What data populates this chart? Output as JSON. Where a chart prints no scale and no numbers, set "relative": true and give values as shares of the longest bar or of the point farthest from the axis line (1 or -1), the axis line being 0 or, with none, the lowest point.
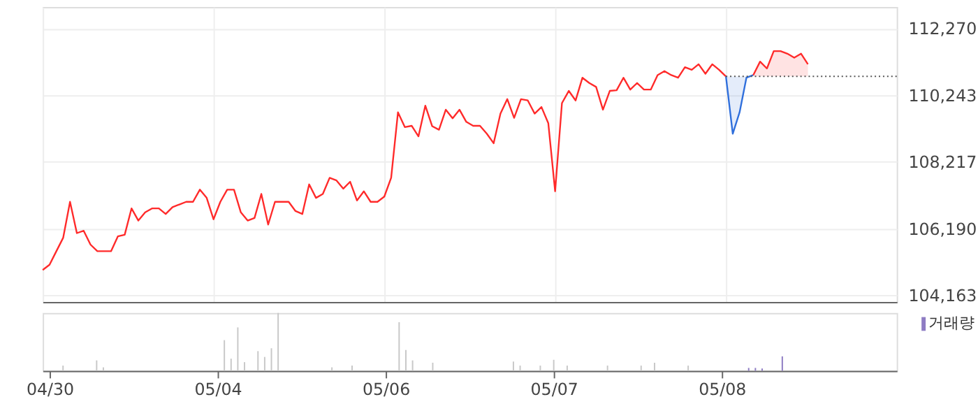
{
  "chart_data": [
    {
      "type": "line",
      "ylim": [
        103960,
        112920
      ],
      "yticks": [
        {
          "value": 104163,
          "label": "104,163"
        },
        {
          "value": 106190,
          "label": "106,190"
        },
        {
          "value": 108217,
          "label": "108,217"
        },
        {
          "value": 110243,
          "label": "110,243"
        },
        {
          "value": 112270,
          "label": "112,270"
        }
      ],
      "tick_labels": "y",
      "grid": true,
      "categories": [
        null,
        null,
        null,
        null,
        null,
        null,
        null,
        null,
        null,
        null,
        null,
        null,
        null,
        null,
        null,
        null,
        null,
        null,
        null,
        null,
        null,
        null,
        null,
        null,
        null,
        null,
        null,
        null,
        null,
        null,
        null,
        null,
        null,
        null,
        null,
        null,
        null,
        null,
        null,
        null,
        null,
        null,
        null,
        null,
        null,
        null,
        null,
        null,
        null,
        null,
        null,
        null,
        null,
        null,
        null,
        null,
        null,
        null,
        null,
        null,
        null,
        null,
        null,
        null,
        null,
        null,
        null,
        null,
        null,
        null,
        null,
        null,
        null,
        null,
        null,
        null,
        null,
        null,
        null,
        null,
        null,
        null,
        null,
        null,
        null,
        null,
        null,
        null,
        null,
        null,
        null,
        null,
        null,
        null,
        null,
        null,
        null,
        null,
        null,
        null,
        null,
        null,
        null,
        null,
        null,
        null,
        null,
        null,
        null,
        null,
        null,
        null,
        null,
        null,
        null,
        null,
        null,
        null,
        null,
        null,
        null,
        null,
        null,
        null,
        null,
        null
      ],
      "ref_lines": [
        {
          "axis": "y",
          "value": 110810,
          "color": "#555555",
          "line_style": "dotted"
        }
      ],
      "series": [
        {
          "type": "line",
          "color": "#ff2a2a",
          "values": [
            104930,
            105090,
            105500,
            105910,
            107000,
            106050,
            106120,
            105700,
            105500,
            105500,
            105500,
            105950,
            106000,
            106800,
            106430,
            106680,
            106800,
            106800,
            106630,
            106840,
            106920,
            107000,
            107000,
            107370,
            107120,
            106470,
            107000,
            107370,
            107370,
            106680,
            106430,
            106510,
            107240,
            106310,
            107000,
            107000,
            107000,
            106720,
            106630,
            107530,
            107120,
            107240,
            107730,
            107650,
            107400,
            107610,
            107040,
            107320,
            107000,
            107000,
            107160,
            107730,
            109720,
            109270,
            109310,
            108990,
            109920,
            109300,
            109190,
            109800,
            109540,
            109800,
            109430,
            109310,
            109310,
            109070,
            108780,
            109680,
            110120,
            109550,
            110120,
            110080,
            109680,
            109880,
            109390,
            107320,
            110000,
            110370,
            110080,
            110770,
            110610,
            110490,
            109800,
            110370,
            110390,
            110770,
            110410,
            110610,
            110410,
            110410,
            110850,
            110970,
            110850,
            110770,
            111090,
            111010,
            111180,
            110890,
            111180,
            111010,
            110810,
            null,
            null,
            null,
            null,
            null,
            null,
            null,
            null,
            null,
            null,
            null,
            null,
            null,
            null,
            null,
            null,
            null,
            null,
            null,
            null,
            null,
            null,
            null,
            null,
            null
          ]
        },
        {
          "type": "line",
          "color": "#2f6fdc",
          "values": [
            null,
            null,
            null,
            null,
            null,
            null,
            null,
            null,
            null,
            null,
            null,
            null,
            null,
            null,
            null,
            null,
            null,
            null,
            null,
            null,
            null,
            null,
            null,
            null,
            null,
            null,
            null,
            null,
            null,
            null,
            null,
            null,
            null,
            null,
            null,
            null,
            null,
            null,
            null,
            null,
            null,
            null,
            null,
            null,
            null,
            null,
            null,
            null,
            null,
            null,
            null,
            null,
            null,
            null,
            null,
            null,
            null,
            null,
            null,
            null,
            null,
            null,
            null,
            null,
            null,
            null,
            null,
            null,
            null,
            null,
            null,
            null,
            null,
            null,
            null,
            null,
            null,
            null,
            null,
            null,
            null,
            null,
            null,
            null,
            null,
            null,
            null,
            null,
            null,
            null,
            null,
            null,
            null,
            null,
            null,
            null,
            null,
            null,
            null,
            null,
            110810,
            109070,
            109720,
            110770,
            110850,
            null,
            null,
            null,
            null,
            null,
            null,
            null,
            null,
            null,
            null,
            null,
            null,
            null,
            null,
            null,
            null,
            null,
            null,
            null,
            null,
            null
          ],
          "lower": [
            null,
            null,
            null,
            null,
            null,
            null,
            null,
            null,
            null,
            null,
            null,
            null,
            null,
            null,
            null,
            null,
            null,
            null,
            null,
            null,
            null,
            null,
            null,
            null,
            null,
            null,
            null,
            null,
            null,
            null,
            null,
            null,
            null,
            null,
            null,
            null,
            null,
            null,
            null,
            null,
            null,
            null,
            null,
            null,
            null,
            null,
            null,
            null,
            null,
            null,
            null,
            null,
            null,
            null,
            null,
            null,
            null,
            null,
            null,
            null,
            null,
            null,
            null,
            null,
            null,
            null,
            null,
            null,
            null,
            null,
            null,
            null,
            null,
            null,
            null,
            null,
            null,
            null,
            null,
            null,
            null,
            null,
            null,
            null,
            null,
            null,
            null,
            null,
            null,
            null,
            null,
            null,
            null,
            null,
            null,
            null,
            null,
            null,
            null,
            null,
            110810,
            109070,
            109720,
            110770,
            110810,
            null,
            null,
            null,
            null,
            null,
            null,
            null,
            null,
            null,
            null,
            null,
            null,
            null,
            null,
            null,
            null,
            null,
            null,
            null,
            null,
            null
          ],
          "upper": [
            null,
            null,
            null,
            null,
            null,
            null,
            null,
            null,
            null,
            null,
            null,
            null,
            null,
            null,
            null,
            null,
            null,
            null,
            null,
            null,
            null,
            null,
            null,
            null,
            null,
            null,
            null,
            null,
            null,
            null,
            null,
            null,
            null,
            null,
            null,
            null,
            null,
            null,
            null,
            null,
            null,
            null,
            null,
            null,
            null,
            null,
            null,
            null,
            null,
            null,
            null,
            null,
            null,
            null,
            null,
            null,
            null,
            null,
            null,
            null,
            null,
            null,
            null,
            null,
            null,
            null,
            null,
            null,
            null,
            null,
            null,
            null,
            null,
            null,
            null,
            null,
            null,
            null,
            null,
            null,
            null,
            null,
            null,
            null,
            null,
            null,
            null,
            null,
            null,
            null,
            null,
            null,
            null,
            null,
            null,
            null,
            null,
            null,
            null,
            null,
            110810,
            110810,
            110810,
            110810,
            110810,
            null,
            null,
            null,
            null,
            null,
            null,
            null,
            null,
            null,
            null,
            null,
            null,
            null,
            null,
            null,
            null,
            null,
            null,
            null,
            null,
            null
          ]
        },
        {
          "type": "line",
          "color": "#ff2a2a",
          "values": [
            null,
            null,
            null,
            null,
            null,
            null,
            null,
            null,
            null,
            null,
            null,
            null,
            null,
            null,
            null,
            null,
            null,
            null,
            null,
            null,
            null,
            null,
            null,
            null,
            null,
            null,
            null,
            null,
            null,
            null,
            null,
            null,
            null,
            null,
            null,
            null,
            null,
            null,
            null,
            null,
            null,
            null,
            null,
            null,
            null,
            null,
            null,
            null,
            null,
            null,
            null,
            null,
            null,
            null,
            null,
            null,
            null,
            null,
            null,
            null,
            null,
            null,
            null,
            null,
            null,
            null,
            null,
            null,
            null,
            null,
            null,
            null,
            null,
            null,
            null,
            null,
            null,
            null,
            null,
            null,
            null,
            null,
            null,
            null,
            null,
            null,
            null,
            null,
            null,
            null,
            null,
            null,
            null,
            null,
            null,
            null,
            null,
            null,
            null,
            null,
            null,
            null,
            null,
            null,
            110850,
            111260,
            111050,
            111580,
            111580,
            111500,
            111380,
            111500,
            111180,
            null,
            null,
            null,
            null,
            null,
            null,
            null,
            null,
            null,
            null,
            null,
            null,
            null
          ],
          "lower": [
            null,
            null,
            null,
            null,
            null,
            null,
            null,
            null,
            null,
            null,
            null,
            null,
            null,
            null,
            null,
            null,
            null,
            null,
            null,
            null,
            null,
            null,
            null,
            null,
            null,
            null,
            null,
            null,
            null,
            null,
            null,
            null,
            null,
            null,
            null,
            null,
            null,
            null,
            null,
            null,
            null,
            null,
            null,
            null,
            null,
            null,
            null,
            null,
            null,
            null,
            null,
            null,
            null,
            null,
            null,
            null,
            null,
            null,
            null,
            null,
            null,
            null,
            null,
            null,
            null,
            null,
            null,
            null,
            null,
            null,
            null,
            null,
            null,
            null,
            null,
            null,
            null,
            null,
            null,
            null,
            null,
            null,
            null,
            null,
            null,
            null,
            null,
            null,
            null,
            null,
            null,
            null,
            null,
            null,
            null,
            null,
            null,
            null,
            null,
            null,
            null,
            null,
            null,
            null,
            110810,
            110810,
            110810,
            110810,
            110810,
            110810,
            110810,
            110810,
            110810,
            null,
            null,
            null,
            null,
            null,
            null,
            null,
            null,
            null,
            null,
            null,
            null,
            null
          ],
          "upper": [
            null,
            null,
            null,
            null,
            null,
            null,
            null,
            null,
            null,
            null,
            null,
            null,
            null,
            null,
            null,
            null,
            null,
            null,
            null,
            null,
            null,
            null,
            null,
            null,
            null,
            null,
            null,
            null,
            null,
            null,
            null,
            null,
            null,
            null,
            null,
            null,
            null,
            null,
            null,
            null,
            null,
            null,
            null,
            null,
            null,
            null,
            null,
            null,
            null,
            null,
            null,
            null,
            null,
            null,
            null,
            null,
            null,
            null,
            null,
            null,
            null,
            null,
            null,
            null,
            null,
            null,
            null,
            null,
            null,
            null,
            null,
            null,
            null,
            null,
            null,
            null,
            null,
            null,
            null,
            null,
            null,
            null,
            null,
            null,
            null,
            null,
            null,
            null,
            null,
            null,
            null,
            null,
            null,
            null,
            null,
            null,
            null,
            null,
            null,
            null,
            null,
            null,
            null,
            null,
            110850,
            111260,
            111050,
            111580,
            111580,
            111500,
            111380,
            111500,
            111180,
            null,
            null,
            null,
            null,
            null,
            null,
            null,
            null,
            null,
            null,
            null,
            null,
            null
          ]
        }
      ]
    },
    {
      "type": "bar",
      "relative": true,
      "tick_labels": "x",
      "legend": "top right",
      "categories": [
        "04/30",
        null,
        null,
        null,
        null,
        null,
        null,
        null,
        null,
        null,
        null,
        null,
        null,
        null,
        null,
        null,
        null,
        null,
        null,
        null,
        null,
        null,
        null,
        null,
        null,
        "05/04",
        null,
        null,
        null,
        null,
        null,
        null,
        null,
        null,
        null,
        null,
        null,
        null,
        null,
        null,
        null,
        null,
        null,
        null,
        null,
        null,
        null,
        null,
        null,
        null,
        "05/06",
        null,
        null,
        null,
        null,
        null,
        null,
        null,
        null,
        null,
        null,
        null,
        null,
        null,
        null,
        null,
        null,
        null,
        null,
        null,
        null,
        null,
        null,
        null,
        null,
        "05/07",
        null,
        null,
        null,
        null,
        null,
        null,
        null,
        null,
        null,
        null,
        null,
        null,
        null,
        null,
        null,
        null,
        null,
        null,
        null,
        null,
        null,
        null,
        null,
        null,
        "05/08",
        null,
        null,
        null,
        null,
        null,
        null,
        null,
        null,
        null,
        null,
        null,
        null,
        null,
        null,
        null,
        null,
        null,
        null,
        null,
        null,
        null,
        null,
        null,
        null,
        null
      ],
      "series": [
        {
          "name": "거래량",
          "color": "#8e7cc3",
          "values": [
            null,
            null,
            0.09,
            null,
            null,
            null,
            null,
            0.18,
            0.06,
            null,
            null,
            null,
            null,
            null,
            null,
            null,
            null,
            null,
            null,
            null,
            null,
            null,
            null,
            null,
            null,
            null,
            0.53,
            0.21,
            0.75,
            0.15,
            null,
            0.34,
            0.24,
            0.39,
            1.0,
            null,
            null,
            null,
            null,
            null,
            null,
            null,
            0.06,
            null,
            null,
            0.09,
            null,
            null,
            null,
            null,
            null,
            null,
            0.84,
            0.36,
            0.18,
            null,
            null,
            0.14,
            null,
            null,
            null,
            null,
            null,
            null,
            null,
            null,
            null,
            null,
            null,
            0.16,
            0.09,
            null,
            null,
            0.09,
            null,
            0.19,
            null,
            0.09,
            null,
            null,
            null,
            null,
            null,
            0.09,
            null,
            null,
            null,
            null,
            0.09,
            null,
            0.14,
            null,
            null,
            null,
            null,
            0.09,
            null,
            null,
            null,
            null,
            null,
            null,
            null,
            null,
            0.05,
            0.05,
            0.04,
            null,
            null,
            0.25,
            null,
            null,
            null,
            null,
            null,
            null,
            null,
            null,
            null,
            null,
            null,
            null,
            null,
            null,
            null,
            null
          ],
          "colors": [
            "#c8c8c8",
            "#c8c8c8",
            "#c8c8c8",
            "#c8c8c8",
            "#c8c8c8",
            "#c8c8c8",
            "#c8c8c8",
            "#c8c8c8",
            "#c8c8c8",
            "#c8c8c8",
            "#c8c8c8",
            "#c8c8c8",
            "#c8c8c8",
            "#c8c8c8",
            "#c8c8c8",
            "#c8c8c8",
            "#c8c8c8",
            "#c8c8c8",
            "#c8c8c8",
            "#c8c8c8",
            "#c8c8c8",
            "#c8c8c8",
            "#c8c8c8",
            "#c8c8c8",
            "#c8c8c8",
            "#c8c8c8",
            "#c8c8c8",
            "#c8c8c8",
            "#c8c8c8",
            "#c8c8c8",
            "#c8c8c8",
            "#c8c8c8",
            "#c8c8c8",
            "#c8c8c8",
            "#c8c8c8",
            "#c8c8c8",
            "#c8c8c8",
            "#c8c8c8",
            "#c8c8c8",
            "#c8c8c8",
            "#c8c8c8",
            "#c8c8c8",
            "#c8c8c8",
            "#c8c8c8",
            "#c8c8c8",
            "#c8c8c8",
            "#c8c8c8",
            "#c8c8c8",
            "#c8c8c8",
            "#c8c8c8",
            "#c8c8c8",
            "#c8c8c8",
            "#c8c8c8",
            "#c8c8c8",
            "#c8c8c8",
            "#c8c8c8",
            "#c8c8c8",
            "#c8c8c8",
            "#c8c8c8",
            "#c8c8c8",
            "#c8c8c8",
            "#c8c8c8",
            "#c8c8c8",
            "#c8c8c8",
            "#c8c8c8",
            "#c8c8c8",
            "#c8c8c8",
            "#c8c8c8",
            "#c8c8c8",
            "#c8c8c8",
            "#c8c8c8",
            "#c8c8c8",
            "#c8c8c8",
            "#c8c8c8",
            "#c8c8c8",
            "#c8c8c8",
            "#c8c8c8",
            "#c8c8c8",
            "#c8c8c8",
            "#c8c8c8",
            "#c8c8c8",
            "#c8c8c8",
            "#c8c8c8",
            "#c8c8c8",
            "#c8c8c8",
            "#c8c8c8",
            "#c8c8c8",
            "#c8c8c8",
            "#c8c8c8",
            "#c8c8c8",
            "#c8c8c8",
            "#c8c8c8",
            "#c8c8c8",
            "#c8c8c8",
            "#c8c8c8",
            "#c8c8c8",
            "#c8c8c8",
            "#c8c8c8",
            "#c8c8c8",
            "#c8c8c8",
            "#8e7cc3",
            "#8e7cc3",
            "#8e7cc3",
            "#8e7cc3",
            "#8e7cc3",
            "#8e7cc3",
            "#8e7cc3",
            "#8e7cc3",
            "#8e7cc3",
            "#8e7cc3",
            "#8e7cc3",
            "#8e7cc3",
            "#8e7cc3",
            "#8e7cc3",
            "#8e7cc3",
            "#8e7cc3",
            "#8e7cc3",
            "#8e7cc3",
            "#8e7cc3",
            "#8e7cc3",
            "#8e7cc3",
            "#8e7cc3",
            "#8e7cc3",
            "#8e7cc3",
            "#8e7cc3",
            "#8e7cc3"
          ]
        }
      ]
    }
  ]
}
